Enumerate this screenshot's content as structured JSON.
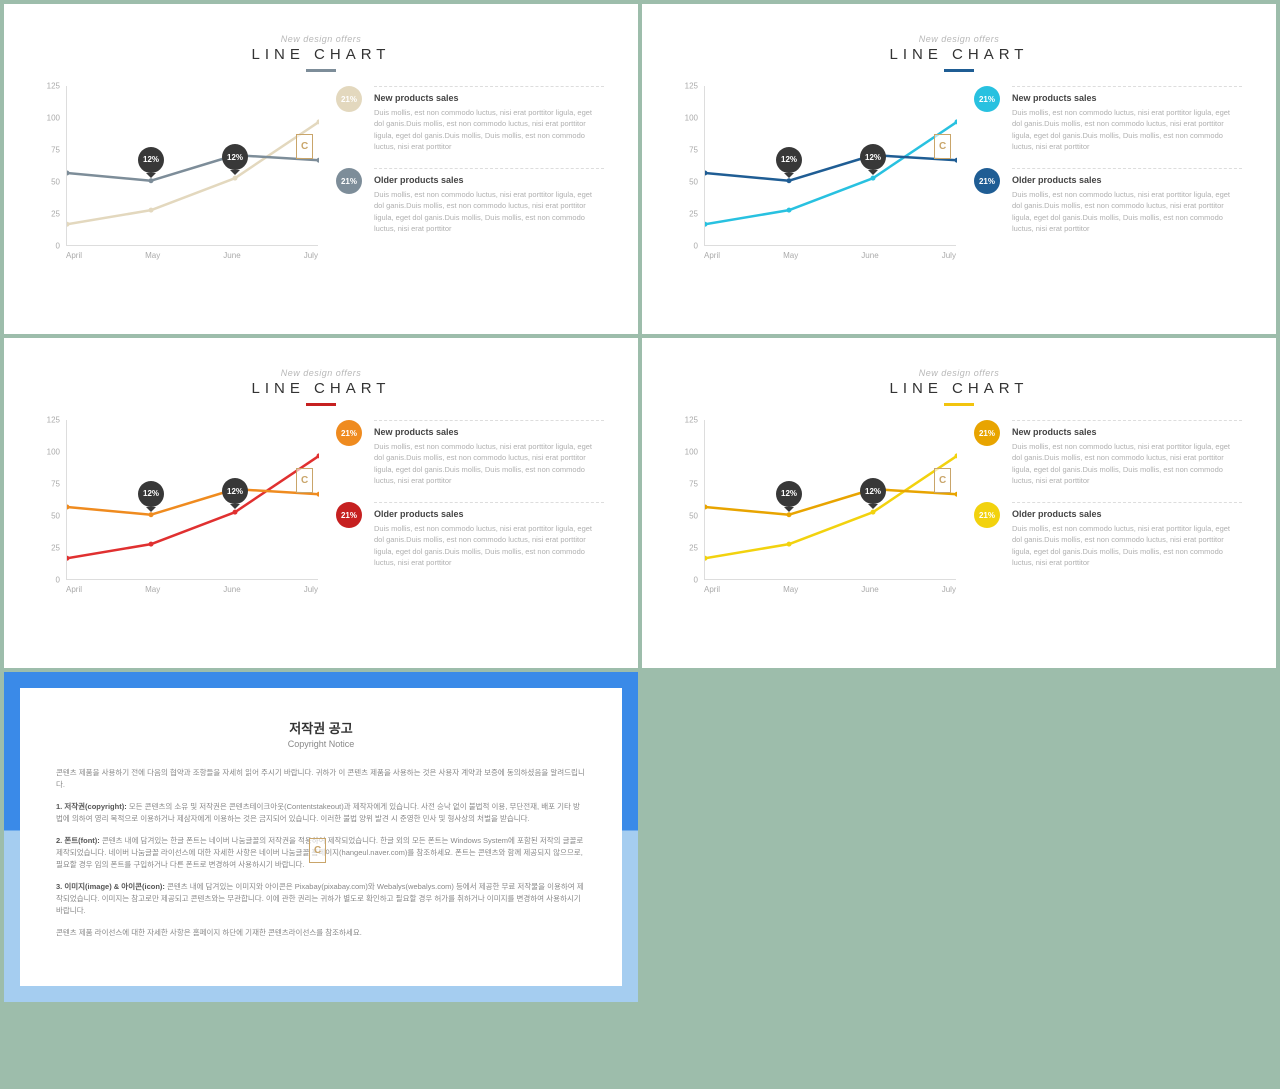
{
  "page": {
    "background": "#9dbdab"
  },
  "common": {
    "pretitle": "New design offers",
    "title": "LINE CHART",
    "pretitle_color": "#b8b8b8",
    "title_color": "#333333",
    "chart": {
      "type": "line",
      "ylim": [
        0,
        125
      ],
      "ytick_step": 25,
      "yticks": [
        "0",
        "25",
        "50",
        "75",
        "100",
        "125"
      ],
      "xlabels": [
        "April",
        "May",
        "June",
        "July"
      ],
      "grid_color": "#dddddd",
      "series_a": {
        "name": "older",
        "values": [
          57,
          51,
          71,
          67
        ]
      },
      "series_b": {
        "name": "new",
        "values": [
          17,
          28,
          53,
          97
        ]
      },
      "line_width": 2.5,
      "bubble1": {
        "label": "12%",
        "at_index": 1,
        "series": "a"
      },
      "bubble2": {
        "label": "12%",
        "at_index": 2,
        "series": "b",
        "above": true
      }
    },
    "side": {
      "pct": "21%",
      "item1_title": "New products sales",
      "item2_title": "Older products sales",
      "desc": "Duis mollis, est non commodo luctus, nisi erat porttitor ligula, eget dol ganis.Duis mollis, est non commodo luctus, nisi erat porttitor ligula, eget dol ganis.Duis mollis, Duis mollis, est non commodo luctus, nisi erat porttitor"
    },
    "watermark": "C"
  },
  "slides": [
    {
      "accent": "#7d8d99",
      "line_a": "#7d8d99",
      "line_b": "#e3d8be",
      "circle_a": "#e3d8be",
      "circle_b": "#7d8d99"
    },
    {
      "accent": "#1f5d94",
      "line_a": "#1f5d94",
      "line_b": "#28c1e0",
      "circle_a": "#28c1e0",
      "circle_b": "#1f5d94"
    },
    {
      "accent": "#c62020",
      "line_a": "#ef8b1f",
      "line_b": "#e03030",
      "circle_a": "#ef8b1f",
      "circle_b": "#c62020"
    },
    {
      "accent": "#f2c40e",
      "line_a": "#e8a400",
      "line_b": "#f2d20e",
      "circle_a": "#e8a400",
      "circle_b": "#f2d20e"
    }
  ],
  "copyright": {
    "bg_top": "#3a8ae8",
    "bg_bottom": "#a5cdf0",
    "title": "저작권 공고",
    "subtitle": "Copyright Notice",
    "p0": "콘텐츠 제품을 사용하기 전에 다음의 협약과 조항들을 자세히 읽어 주시기 바랍니다. 귀하가 이 콘텐츠 제품을 사용하는 것은 사용자 계약과 보증에 동의하셨음을 알려드립니다.",
    "p1_b": "1. 저작권(copyright):",
    "p1": " 모든 콘텐츠의 소유 및 저작권은 콘텐츠테이크아웃(Contentstakeout)과 제작자에게 있습니다. 사전 승낙 없이 불법적 이용, 무단전재, 배포 기타 방법에 의하여 영리 목적으로 이용하거나 제삼자에게 이용하는 것은 금지되어 있습니다. 이러한 불법 양위 발견 시 준영한 민사 및 형사상의 처벌을 받습니다.",
    "p2_b": "2. 폰트(font):",
    "p2": " 콘텐츠 내에 담겨있는 한글 폰트는 네이버 나눔글꼴의 저작권을 적용하여 제작되었습니다. 한글 외의 모든 폰트는 Windows System에 포함된 저작의 글꼴로 제작되었습니다. 네이버 나눔글꼴 라이선스에 대한 자세한 사항은 네이버 나눔글꼴 홈페이지(hangeul.naver.com)를 참조하세요. 폰트는 콘텐츠와 함께 제공되지 않으므로, 필요할 경우 임의 폰트를 구입하거나 다른 폰트로 변경하여 사용하시기 바랍니다.",
    "p3_b": "3. 이미지(image) & 아이콘(icon):",
    "p3": " 콘텐츠 내에 담겨있는 이미지와 아이콘은 Pixabay(pixabay.com)와 Webalys(webalys.com) 등에서 제공한 무료 저작물을 이용하여 제작되었습니다. 이미지는 참고로만 제공되고 콘텐츠와는 무관합니다. 이에 관한 권리는 귀하가 별도로 확인하고 필요할 경우 허가를 취하거나 이미지를 변경하여 사용하시기 바랍니다.",
    "p4": "콘텐츠 제품 라이선스에 대한 자세한 사항은 홈페이지 하단에 기재한 콘텐츠라이선스를 참조하세요."
  }
}
